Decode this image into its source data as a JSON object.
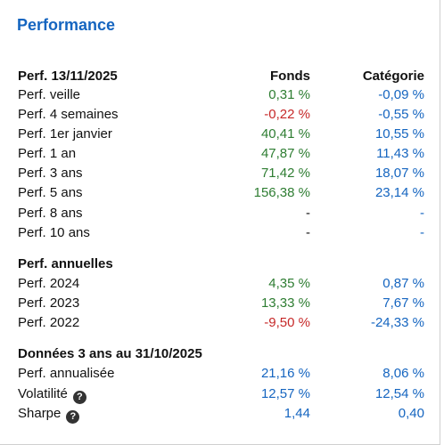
{
  "title": "Performance",
  "section1": {
    "header": "Perf. 13/11/2025",
    "col_fund": "Fonds",
    "col_cat": "Catégorie",
    "rows": [
      {
        "label": "Perf. veille",
        "fund": "0,31 %",
        "cat": "-0,09 %"
      },
      {
        "label": "Perf. 4 semaines",
        "fund": "-0,22 %",
        "cat": "-0,55 %"
      },
      {
        "label": "Perf. 1er janvier",
        "fund": "40,41 %",
        "cat": "10,55 %"
      },
      {
        "label": "Perf. 1 an",
        "fund": "47,87 %",
        "cat": "11,43 %"
      },
      {
        "label": "Perf. 3 ans",
        "fund": "71,42 %",
        "cat": "18,07 %"
      },
      {
        "label": "Perf. 5 ans",
        "fund": "156,38 %",
        "cat": "23,14 %"
      },
      {
        "label": "Perf. 8 ans",
        "fund": "-",
        "cat": "-"
      },
      {
        "label": "Perf. 10 ans",
        "fund": "-",
        "cat": "-"
      }
    ]
  },
  "section2": {
    "header": "Perf. annuelles",
    "rows": [
      {
        "label": "Perf. 2024",
        "fund": "4,35 %",
        "cat": "0,87 %"
      },
      {
        "label": "Perf. 2023",
        "fund": "13,33 %",
        "cat": "7,67 %"
      },
      {
        "label": "Perf. 2022",
        "fund": "-9,50 %",
        "cat": "-24,33 %"
      }
    ]
  },
  "section3": {
    "header": "Données 3 ans au 31/10/2025",
    "rows": [
      {
        "label": "Perf. annualisée",
        "fund": "21,16 %",
        "cat": "8,06 %"
      },
      {
        "label": "Volatilité",
        "fund": "12,57 %",
        "cat": "12,54 %",
        "help_icon": "question-circle-icon"
      },
      {
        "label": "Sharpe",
        "fund": "1,44",
        "cat": "0,40",
        "help_icon": "question-circle-icon"
      }
    ]
  },
  "colors": {
    "title_blue": "#1565c0",
    "positive_green": "#2e7d32",
    "negative_red": "#c62828",
    "category_blue": "#1565c0"
  }
}
